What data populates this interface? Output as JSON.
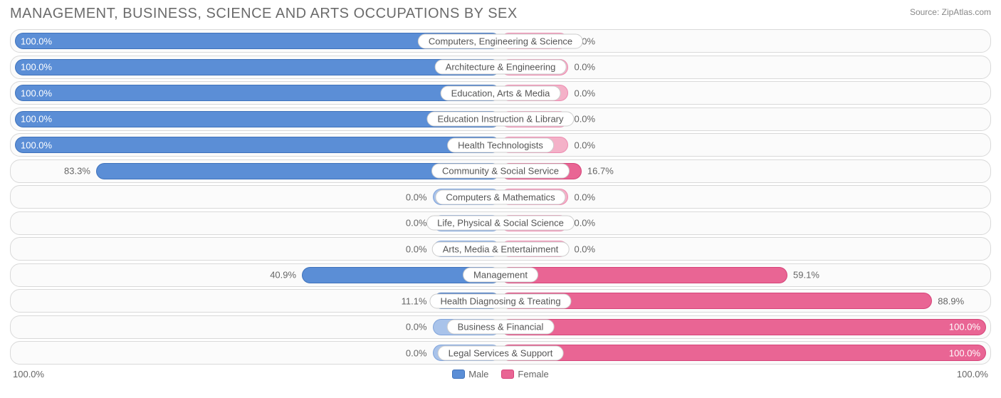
{
  "title": "MANAGEMENT, BUSINESS, SCIENCE AND ARTS OCCUPATIONS BY SEX",
  "source_label": "Source:",
  "source_value": "ZipAtlas.com",
  "colors": {
    "male_fill": "#5b8ed6",
    "male_border": "#3f72bb",
    "male_light_fill": "#a9c3ea",
    "male_light_border": "#7fa3da",
    "female_fill": "#e96594",
    "female_border": "#d64479",
    "female_light_fill": "#f4b1c8",
    "female_light_border": "#ec8cb0",
    "track_border": "#d9d9d9",
    "track_bg": "#fbfbfb",
    "text": "#666666",
    "title_color": "#6b6b6b",
    "label_bg": "#ffffff",
    "label_border": "#cccccc"
  },
  "axis": {
    "left_label": "100.0%",
    "right_label": "100.0%"
  },
  "legend": {
    "male": "Male",
    "female": "Female"
  },
  "min_bar_pct": 14,
  "rows": [
    {
      "label": "Computers, Engineering & Science",
      "male": 100.0,
      "female": 0.0,
      "male_text": "100.0%",
      "female_text": "0.0%"
    },
    {
      "label": "Architecture & Engineering",
      "male": 100.0,
      "female": 0.0,
      "male_text": "100.0%",
      "female_text": "0.0%"
    },
    {
      "label": "Education, Arts & Media",
      "male": 100.0,
      "female": 0.0,
      "male_text": "100.0%",
      "female_text": "0.0%"
    },
    {
      "label": "Education Instruction & Library",
      "male": 100.0,
      "female": 0.0,
      "male_text": "100.0%",
      "female_text": "0.0%"
    },
    {
      "label": "Health Technologists",
      "male": 100.0,
      "female": 0.0,
      "male_text": "100.0%",
      "female_text": "0.0%"
    },
    {
      "label": "Community & Social Service",
      "male": 83.3,
      "female": 16.7,
      "male_text": "83.3%",
      "female_text": "16.7%"
    },
    {
      "label": "Computers & Mathematics",
      "male": 0.0,
      "female": 0.0,
      "male_text": "0.0%",
      "female_text": "0.0%"
    },
    {
      "label": "Life, Physical & Social Science",
      "male": 0.0,
      "female": 0.0,
      "male_text": "0.0%",
      "female_text": "0.0%"
    },
    {
      "label": "Arts, Media & Entertainment",
      "male": 0.0,
      "female": 0.0,
      "male_text": "0.0%",
      "female_text": "0.0%"
    },
    {
      "label": "Management",
      "male": 40.9,
      "female": 59.1,
      "male_text": "40.9%",
      "female_text": "59.1%"
    },
    {
      "label": "Health Diagnosing & Treating",
      "male": 11.1,
      "female": 88.9,
      "male_text": "11.1%",
      "female_text": "88.9%"
    },
    {
      "label": "Business & Financial",
      "male": 0.0,
      "female": 100.0,
      "male_text": "0.0%",
      "female_text": "100.0%"
    },
    {
      "label": "Legal Services & Support",
      "male": 0.0,
      "female": 100.0,
      "male_text": "0.0%",
      "female_text": "100.0%"
    }
  ]
}
